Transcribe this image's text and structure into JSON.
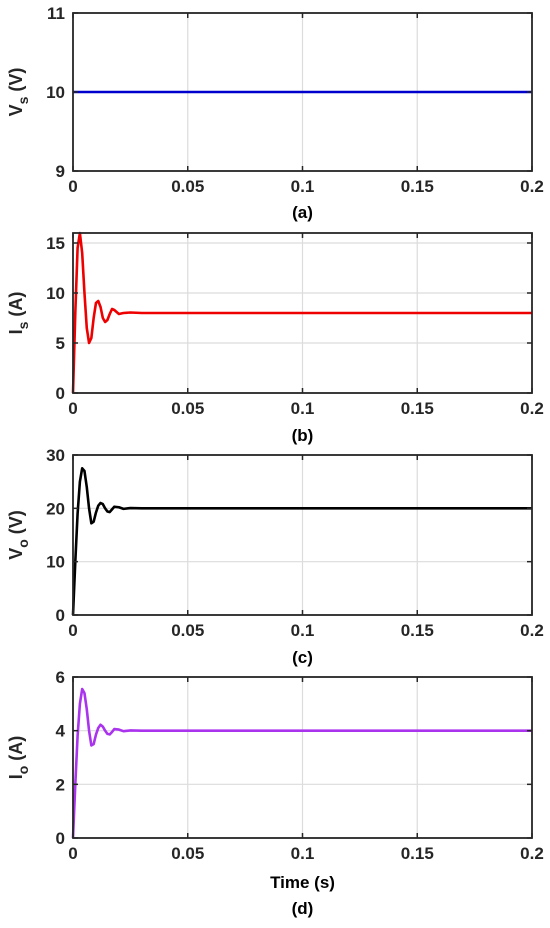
{
  "chart_data": [
    {
      "type": "line",
      "caption": "(a)",
      "ylabel": {
        "main": "V",
        "sub": "s",
        "unit": "(V)"
      },
      "xlabel": "",
      "xlim": [
        0,
        0.2
      ],
      "ylim": [
        9,
        11
      ],
      "xticks": [
        "0",
        "0.05",
        "0.1",
        "0.15",
        "0.2"
      ],
      "yticks": [
        "9",
        "10",
        "11"
      ],
      "grid": true,
      "series": [
        {
          "color": "#0000CC",
          "x": [
            0,
            0.2
          ],
          "y": [
            10,
            10
          ]
        }
      ]
    },
    {
      "type": "line",
      "caption": "(b)",
      "ylabel": {
        "main": "I",
        "sub": "s",
        "unit": "(A)"
      },
      "xlabel": "",
      "xlim": [
        0,
        0.2
      ],
      "ylim": [
        0,
        16
      ],
      "xticks": [
        "0",
        "0.05",
        "0.1",
        "0.15",
        "0.2"
      ],
      "yticks": [
        "0",
        "5",
        "10",
        "15"
      ],
      "grid": true,
      "series": [
        {
          "color": "#EE0000",
          "x": [
            0,
            0.001,
            0.002,
            0.003,
            0.004,
            0.005,
            0.006,
            0.007,
            0.008,
            0.009,
            0.01,
            0.011,
            0.012,
            0.013,
            0.014,
            0.015,
            0.016,
            0.017,
            0.018,
            0.02,
            0.022,
            0.025,
            0.03,
            0.05,
            0.1,
            0.15,
            0.2
          ],
          "y": [
            0,
            8,
            14.5,
            16,
            14,
            10,
            6.5,
            5,
            5.5,
            7.5,
            9.0,
            9.2,
            8.6,
            7.5,
            7.1,
            7.3,
            7.9,
            8.4,
            8.3,
            7.9,
            8.0,
            8.05,
            8,
            8,
            8,
            8,
            8
          ]
        }
      ]
    },
    {
      "type": "line",
      "caption": "(c)",
      "ylabel": {
        "main": "V",
        "sub": "o",
        "unit": "(V)"
      },
      "xlabel": "",
      "xlim": [
        0,
        0.2
      ],
      "ylim": [
        0,
        30
      ],
      "xticks": [
        "0",
        "0.05",
        "0.1",
        "0.15",
        "0.2"
      ],
      "yticks": [
        "0",
        "10",
        "20",
        "30"
      ],
      "grid": true,
      "series": [
        {
          "color": "#000000",
          "x": [
            0,
            0.001,
            0.002,
            0.003,
            0.004,
            0.005,
            0.006,
            0.007,
            0.008,
            0.009,
            0.01,
            0.011,
            0.012,
            0.013,
            0.014,
            0.015,
            0.016,
            0.017,
            0.018,
            0.02,
            0.022,
            0.025,
            0.03,
            0.05,
            0.1,
            0.15,
            0.2
          ],
          "y": [
            0,
            10,
            19,
            25,
            27.5,
            27,
            24,
            20,
            17.2,
            17.5,
            19.2,
            20.5,
            21,
            20.8,
            20,
            19.4,
            19.3,
            19.8,
            20.3,
            20.2,
            19.9,
            20.05,
            20,
            20,
            20,
            20,
            20
          ]
        }
      ]
    },
    {
      "type": "line",
      "caption": "(d)",
      "ylabel": {
        "main": "I",
        "sub": "o",
        "unit": "(A)"
      },
      "xlabel": "Time (s)",
      "xlim": [
        0,
        0.2
      ],
      "ylim": [
        0,
        6
      ],
      "xticks": [
        "0",
        "0.05",
        "0.1",
        "0.15",
        "0.2"
      ],
      "yticks": [
        "0",
        "2",
        "4",
        "6"
      ],
      "grid": true,
      "series": [
        {
          "color": "#AA33EE",
          "x": [
            0,
            0.001,
            0.002,
            0.003,
            0.004,
            0.005,
            0.006,
            0.007,
            0.008,
            0.009,
            0.01,
            0.011,
            0.012,
            0.013,
            0.014,
            0.015,
            0.016,
            0.017,
            0.018,
            0.02,
            0.022,
            0.025,
            0.03,
            0.05,
            0.1,
            0.15,
            0.2
          ],
          "y": [
            0,
            2,
            3.8,
            5.0,
            5.55,
            5.4,
            4.8,
            4.0,
            3.45,
            3.5,
            3.85,
            4.1,
            4.22,
            4.15,
            4.0,
            3.88,
            3.86,
            3.95,
            4.06,
            4.04,
            3.98,
            4.01,
            4,
            4,
            4,
            4,
            4
          ]
        }
      ]
    }
  ]
}
